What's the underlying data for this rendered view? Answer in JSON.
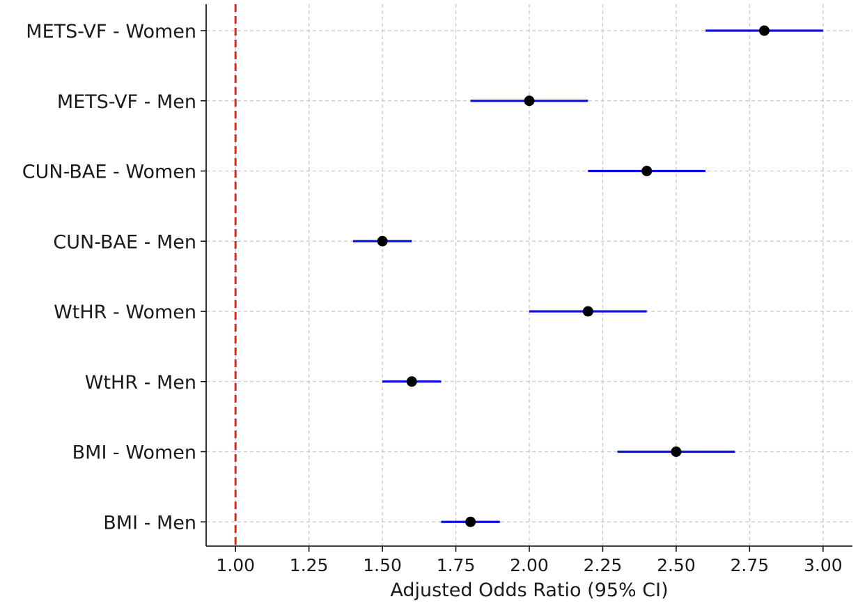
{
  "chart_data": {
    "type": "forest",
    "xlabel": "Adjusted Odds Ratio (95% CI)",
    "ylabel": "",
    "xlim": [
      0.9,
      3.1
    ],
    "xticks": [
      1.0,
      1.25,
      1.5,
      1.75,
      2.0,
      2.25,
      2.5,
      2.75,
      3.0
    ],
    "xtick_labels": [
      "1.00",
      "1.25",
      "1.50",
      "1.75",
      "2.00",
      "2.25",
      "2.50",
      "2.75",
      "3.00"
    ],
    "grid": true,
    "reference_line": {
      "x": 1.0,
      "color": "#e8201a",
      "style": "dashed"
    },
    "colors": {
      "ci": "#1010e0",
      "point": "#000000",
      "grid": "#c8c8c8",
      "axis": "#000000"
    },
    "rows": [
      {
        "label": "METS-VF - Women",
        "or": 2.8,
        "lower": 2.6,
        "upper": 3.0
      },
      {
        "label": "METS-VF - Men",
        "or": 2.0,
        "lower": 1.8,
        "upper": 2.2
      },
      {
        "label": "CUN-BAE - Women",
        "or": 2.4,
        "lower": 2.2,
        "upper": 2.6
      },
      {
        "label": "CUN-BAE - Men",
        "or": 1.5,
        "lower": 1.4,
        "upper": 1.6
      },
      {
        "label": "WtHR - Women",
        "or": 2.2,
        "lower": 2.0,
        "upper": 2.4
      },
      {
        "label": "WtHR - Men",
        "or": 1.6,
        "lower": 1.5,
        "upper": 1.7
      },
      {
        "label": "BMI - Women",
        "or": 2.5,
        "lower": 2.3,
        "upper": 2.7
      },
      {
        "label": "BMI - Men",
        "or": 1.8,
        "lower": 1.7,
        "upper": 1.9
      }
    ]
  }
}
